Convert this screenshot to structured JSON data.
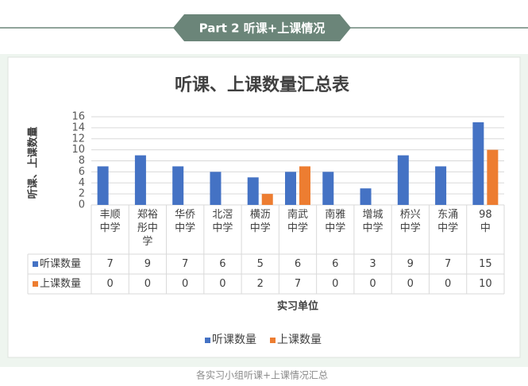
{
  "header": {
    "title": "Part 2 听课+上课情况"
  },
  "chart_data": {
    "type": "bar",
    "title": "听课、上课数量汇总表",
    "y_axis_label": "听课、上课数量",
    "x_axis_label": "实习单位",
    "categories": [
      "丰顺中学",
      "郑裕彤中学",
      "华侨中学",
      "北滘中学",
      "横沥中学",
      "南武中学",
      "南雅中学",
      "增城中学",
      "桥兴中学",
      "东涌中学",
      "98中"
    ],
    "series": [
      {
        "name": "听课数量",
        "color": "#4472c4",
        "values": [
          7,
          9,
          7,
          6,
          5,
          6,
          6,
          3,
          9,
          7,
          15
        ]
      },
      {
        "name": "上课数量",
        "color": "#ed7d31",
        "values": [
          0,
          0,
          0,
          0,
          2,
          7,
          0,
          0,
          0,
          0,
          10
        ]
      }
    ],
    "ylim": [
      0,
      16
    ],
    "yticks": [
      0,
      2,
      4,
      6,
      8,
      10,
      12,
      14,
      16
    ],
    "grid": true,
    "legend": "bottom"
  },
  "caption": "各实习小组听课+上课情况汇总"
}
